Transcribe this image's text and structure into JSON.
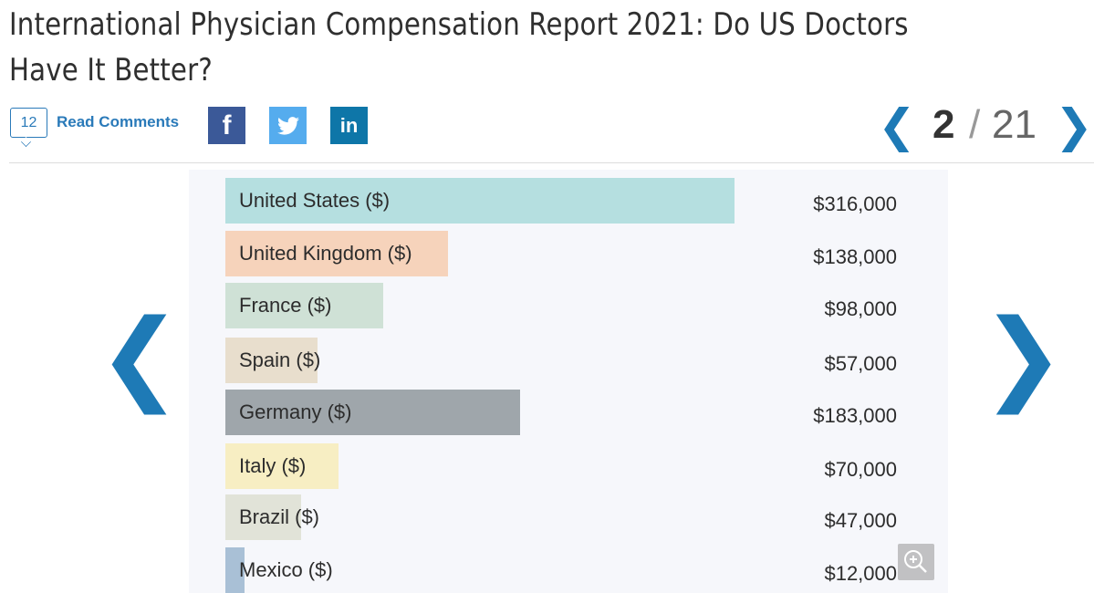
{
  "article": {
    "title": "International Physician Compensation Report 2021: Do US Doctors Have It Better?"
  },
  "comments": {
    "count": "12",
    "label": "Read Comments"
  },
  "social": {
    "facebook_icon": "facebook-icon",
    "twitter_icon": "twitter-icon",
    "linkedin_icon": "linkedin-icon",
    "facebook_glyph": "f",
    "linkedin_glyph": "in"
  },
  "pager": {
    "prev_glyph": "❮",
    "current": "2",
    "separator": "/",
    "total": "21",
    "next_glyph": "❯"
  },
  "slide_nav": {
    "prev_glyph": "❮",
    "next_glyph": "❯"
  },
  "colors": {
    "accent": "#1e7ab6"
  },
  "chart_data": {
    "type": "bar",
    "orientation": "horizontal",
    "categories": [
      "United States ($)",
      "United Kingdom ($)",
      "France ($)",
      "Spain ($)",
      "Germany ($)",
      "Italy ($)",
      "Brazil ($)",
      "Mexico ($)"
    ],
    "values": [
      316000,
      138000,
      98000,
      57000,
      183000,
      70000,
      47000,
      12000
    ],
    "value_labels": [
      "$316,000",
      "$138,000",
      "$98,000",
      "$57,000",
      "$183,000",
      "$70,000",
      "$47,000",
      "$12,000"
    ],
    "colors": [
      "#b5dfe0",
      "#f6d3bb",
      "#cfe1d6",
      "#e8decd",
      "#9fa6ab",
      "#f7eec3",
      "#e1e3d8",
      "#a9c0d6"
    ],
    "xlim": [
      0,
      316000
    ],
    "title": "",
    "xlabel": "",
    "ylabel": "",
    "grid": false
  }
}
